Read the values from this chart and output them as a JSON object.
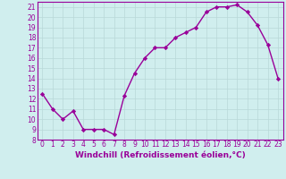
{
  "x": [
    0,
    1,
    2,
    3,
    4,
    5,
    6,
    7,
    8,
    9,
    10,
    11,
    12,
    13,
    14,
    15,
    16,
    17,
    18,
    19,
    20,
    21,
    22,
    23
  ],
  "y": [
    12.5,
    11.0,
    10.0,
    10.8,
    9.0,
    9.0,
    9.0,
    8.5,
    12.3,
    14.5,
    16.0,
    17.0,
    17.0,
    18.0,
    18.5,
    19.0,
    20.5,
    21.0,
    21.0,
    21.2,
    20.5,
    19.2,
    17.3,
    14.0
  ],
  "line_color": "#990099",
  "marker": "D",
  "markersize": 2.2,
  "bg_color": "#d0eeee",
  "grid_color": "#b8d8d8",
  "xlabel": "Windchill (Refroidissement éolien,°C)",
  "xlim": [
    -0.5,
    23.5
  ],
  "ylim": [
    8,
    21.5
  ],
  "yticks": [
    8,
    9,
    10,
    11,
    12,
    13,
    14,
    15,
    16,
    17,
    18,
    19,
    20,
    21
  ],
  "xticks": [
    0,
    1,
    2,
    3,
    4,
    5,
    6,
    7,
    8,
    9,
    10,
    11,
    12,
    13,
    14,
    15,
    16,
    17,
    18,
    19,
    20,
    21,
    22,
    23
  ],
  "tick_fontsize": 5.5,
  "xlabel_fontsize": 6.5,
  "line_width": 1.0
}
